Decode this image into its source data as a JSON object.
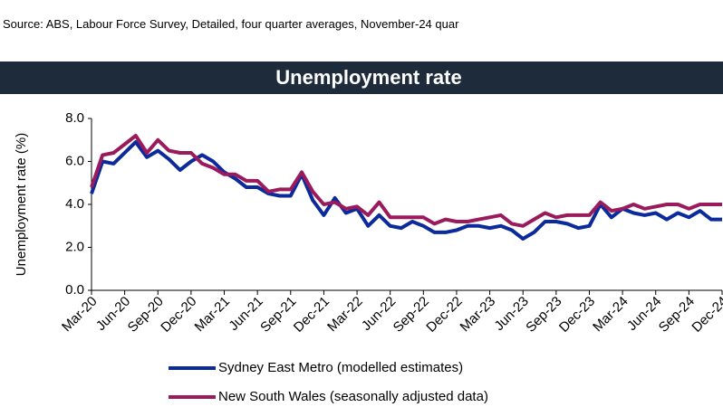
{
  "chart_data": {
    "type": "line",
    "source": "Source: ABS, Labour Force Survey, Detailed, four quarter averages, November-24 quar",
    "title": "Unemployment rate",
    "y_label": "Unemployment rate (%)",
    "categories": [
      "Mar-20",
      null,
      null,
      "Jun-20",
      null,
      null,
      "Sep-20",
      null,
      null,
      "Dec-20",
      null,
      null,
      "Mar-21",
      null,
      null,
      "Jun-21",
      null,
      null,
      "Sep-21",
      null,
      null,
      "Dec-21",
      null,
      null,
      "Mar-22",
      null,
      null,
      "Jun-22",
      null,
      null,
      "Sep-22",
      null,
      null,
      "Dec-22",
      null,
      null,
      "Mar-23",
      null,
      null,
      "Jun-23",
      null,
      null,
      "Sep-23",
      null,
      null,
      "Dec-23",
      null,
      null,
      "Mar-24",
      null,
      null,
      "Jun-24",
      null,
      null,
      "Sep-24",
      null,
      null,
      "Dec-24"
    ],
    "series": [
      {
        "name": "Sydney East Metro (modelled estimates)",
        "color": "#0b2a9c",
        "values": [
          4.5,
          6.0,
          5.9,
          6.4,
          6.9,
          6.2,
          6.5,
          6.1,
          5.6,
          6.0,
          6.3,
          6.0,
          5.5,
          5.2,
          4.8,
          4.8,
          4.5,
          4.4,
          4.4,
          5.4,
          4.2,
          3.5,
          4.3,
          3.6,
          3.8,
          3.0,
          3.5,
          3.0,
          2.9,
          3.2,
          3.0,
          2.7,
          2.7,
          2.8,
          3.0,
          3.0,
          2.9,
          3.0,
          2.8,
          2.4,
          2.7,
          3.2,
          3.2,
          3.1,
          2.9,
          3.0,
          4.0,
          3.4,
          3.8,
          3.6,
          3.5,
          3.6,
          3.3,
          3.6,
          3.4,
          3.7,
          3.3,
          3.3
        ]
      },
      {
        "name": "New South Wales (seasonally adjusted data)",
        "color": "#9a1a5c",
        "values": [
          4.8,
          6.3,
          6.4,
          6.8,
          7.2,
          6.4,
          7.0,
          6.5,
          6.4,
          6.4,
          5.9,
          5.7,
          5.4,
          5.4,
          5.1,
          5.1,
          4.6,
          4.7,
          4.7,
          5.5,
          4.6,
          4.0,
          4.1,
          3.8,
          3.9,
          3.5,
          4.1,
          3.4,
          3.4,
          3.4,
          3.4,
          3.1,
          3.3,
          3.2,
          3.2,
          3.3,
          3.4,
          3.5,
          3.1,
          3.0,
          3.3,
          3.6,
          3.4,
          3.5,
          3.5,
          3.5,
          4.1,
          3.7,
          3.8,
          4.0,
          3.8,
          3.9,
          4.0,
          4.0,
          3.8,
          4.0,
          4.0,
          4.0
        ]
      }
    ],
    "ylim": [
      0,
      8
    ],
    "yticks": [
      {
        "value": 0,
        "label": "0.0"
      },
      {
        "value": 2,
        "label": "2.0"
      },
      {
        "value": 4,
        "label": "4.0"
      },
      {
        "value": 6,
        "label": "6.0"
      },
      {
        "value": 8,
        "label": "8.0"
      }
    ],
    "grid": false
  }
}
